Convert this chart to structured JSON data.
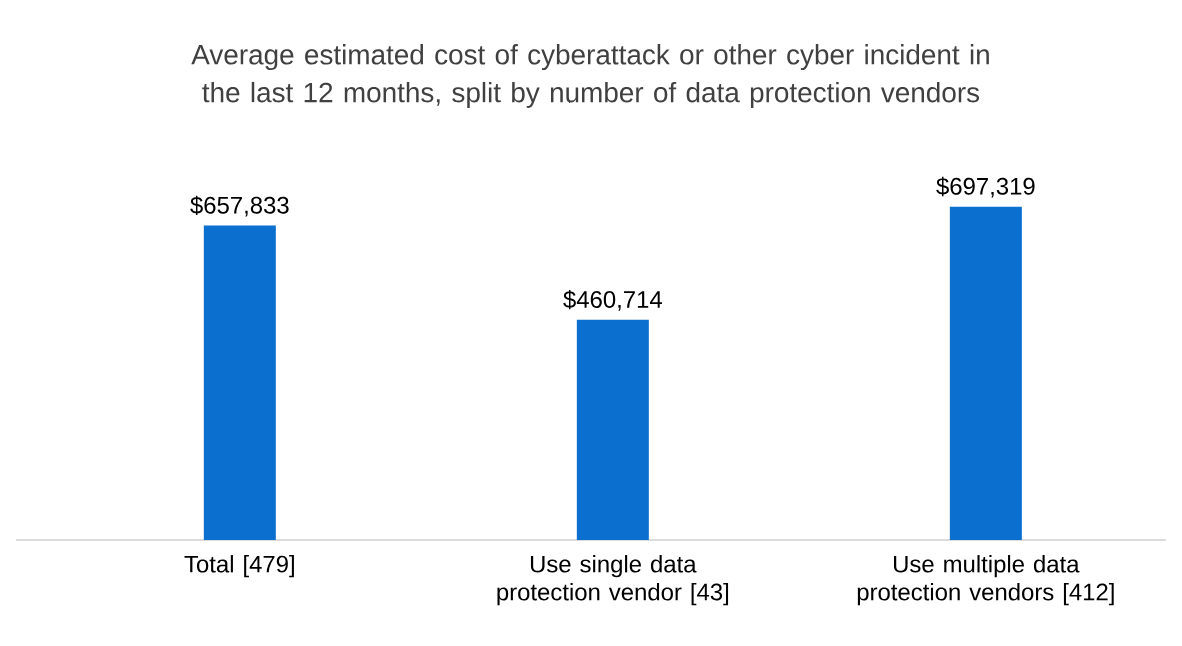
{
  "chart_data": {
    "type": "bar",
    "title": "Average estimated cost of cyberattack or other cyber incident in the last 12 months, split by number of data protection vendors",
    "categories": [
      "Total [479]",
      "Use single data protection vendor [43]",
      "Use multiple data protection vendors [412]"
    ],
    "values": [
      657833,
      460714,
      697319
    ],
    "value_labels": [
      "$657,833",
      "$460,714",
      "$697,319"
    ],
    "color": "#0b6fd0"
  }
}
